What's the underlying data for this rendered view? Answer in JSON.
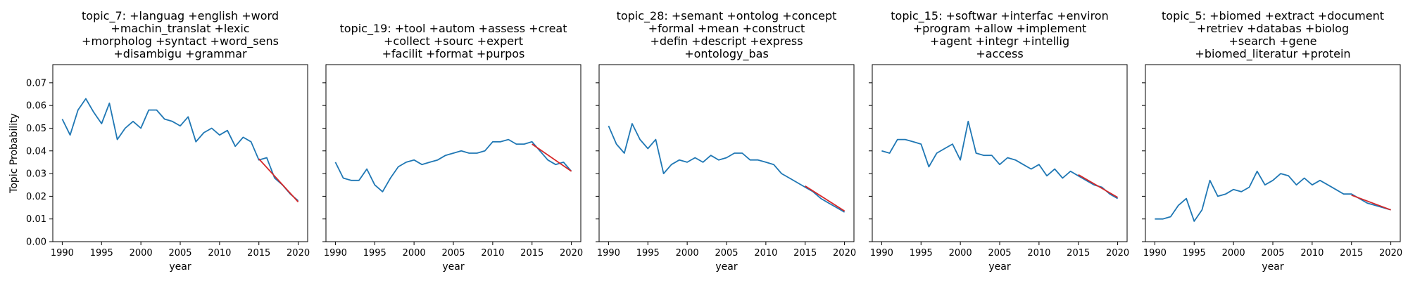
{
  "figure": {
    "ylabel": "Topic Probability",
    "yticks": [
      "0.00",
      "0.01",
      "0.02",
      "0.03",
      "0.04",
      "0.05",
      "0.06",
      "0.07"
    ],
    "xticks": [
      "1990",
      "1995",
      "2000",
      "2005",
      "2010",
      "2015",
      "2020"
    ]
  },
  "chart_data": [
    {
      "type": "line",
      "title": "topic_7: +languag +english +word\n+machin_translat +lexic\n+morpholog +syntact +word_sens\n+disambigu +grammar",
      "xlabel": "year",
      "ylabel": "Topic Probability",
      "xlim": [
        1988.8,
        2021.2
      ],
      "ylim": [
        0,
        0.078
      ],
      "colors": {
        "series": "#1f77b4",
        "trend": "#d62728"
      },
      "x": [
        1990,
        1991,
        1992,
        1993,
        1994,
        1995,
        1996,
        1997,
        1998,
        1999,
        2000,
        2001,
        2002,
        2003,
        2004,
        2005,
        2006,
        2007,
        2008,
        2009,
        2010,
        2011,
        2012,
        2013,
        2014,
        2015,
        2016,
        2017,
        2018,
        2019,
        2020
      ],
      "series": [
        {
          "values": [
            0.054,
            0.047,
            0.058,
            0.063,
            0.057,
            0.052,
            0.061,
            0.045,
            0.05,
            0.053,
            0.05,
            0.058,
            0.058,
            0.054,
            0.053,
            0.051,
            0.055,
            0.044,
            0.048,
            0.05,
            0.047,
            0.049,
            0.042,
            0.046,
            0.044,
            0.036,
            0.037,
            0.028,
            0.025,
            0.021,
            0.018
          ]
        },
        {
          "x": [
            2015,
            2020
          ],
          "values": [
            0.0365,
            0.0175
          ]
        }
      ]
    },
    {
      "type": "line",
      "title": "topic_19: +tool +autom +assess +creat\n+collect +sourc +expert\n+facilit +format +purpos",
      "xlabel": "year",
      "ylim": [
        0,
        0.078
      ],
      "xlim": [
        1988.8,
        2021.2
      ],
      "colors": {
        "series": "#1f77b4",
        "trend": "#d62728"
      },
      "x": [
        1990,
        1991,
        1992,
        1993,
        1994,
        1995,
        1996,
        1997,
        1998,
        1999,
        2000,
        2001,
        2002,
        2003,
        2004,
        2005,
        2006,
        2007,
        2008,
        2009,
        2010,
        2011,
        2012,
        2013,
        2014,
        2015,
        2016,
        2017,
        2018,
        2019,
        2020
      ],
      "series": [
        {
          "values": [
            0.035,
            0.028,
            0.027,
            0.027,
            0.032,
            0.025,
            0.022,
            0.028,
            0.033,
            0.035,
            0.036,
            0.034,
            0.035,
            0.036,
            0.038,
            0.039,
            0.04,
            0.039,
            0.039,
            0.04,
            0.044,
            0.044,
            0.045,
            0.043,
            0.043,
            0.044,
            0.04,
            0.036,
            0.034,
            0.035,
            0.031
          ]
        },
        {
          "x": [
            2015,
            2020
          ],
          "values": [
            0.043,
            0.031
          ]
        }
      ]
    },
    {
      "type": "line",
      "title": "topic_28: +semant +ontolog +concept\n+formal +mean +construct\n+defin +descript +express\n+ontology_bas",
      "xlabel": "year",
      "ylim": [
        0,
        0.078
      ],
      "xlim": [
        1988.8,
        2021.2
      ],
      "colors": {
        "series": "#1f77b4",
        "trend": "#d62728"
      },
      "x": [
        1990,
        1991,
        1992,
        1993,
        1994,
        1995,
        1996,
        1997,
        1998,
        1999,
        2000,
        2001,
        2002,
        2003,
        2004,
        2005,
        2006,
        2007,
        2008,
        2009,
        2010,
        2011,
        2012,
        2013,
        2014,
        2015,
        2016,
        2017,
        2018,
        2019,
        2020
      ],
      "series": [
        {
          "values": [
            0.051,
            0.043,
            0.039,
            0.052,
            0.045,
            0.041,
            0.045,
            0.03,
            0.034,
            0.036,
            0.035,
            0.037,
            0.035,
            0.038,
            0.036,
            0.037,
            0.039,
            0.039,
            0.036,
            0.036,
            0.035,
            0.034,
            0.03,
            0.028,
            0.026,
            0.024,
            0.022,
            0.019,
            0.017,
            0.015,
            0.013
          ]
        },
        {
          "x": [
            2015,
            2020
          ],
          "values": [
            0.0245,
            0.0135
          ]
        }
      ]
    },
    {
      "type": "line",
      "title": "topic_15: +softwar +interfac +environ\n+program +allow +implement\n+agent +integr +intellig\n+access",
      "xlabel": "year",
      "ylim": [
        0,
        0.078
      ],
      "xlim": [
        1988.8,
        2021.2
      ],
      "colors": {
        "series": "#1f77b4",
        "trend": "#d62728"
      },
      "x": [
        1990,
        1991,
        1992,
        1993,
        1994,
        1995,
        1996,
        1997,
        1998,
        1999,
        2000,
        2001,
        2002,
        2003,
        2004,
        2005,
        2006,
        2007,
        2008,
        2009,
        2010,
        2011,
        2012,
        2013,
        2014,
        2015,
        2016,
        2017,
        2018,
        2019,
        2020
      ],
      "series": [
        {
          "values": [
            0.04,
            0.039,
            0.045,
            0.045,
            0.044,
            0.043,
            0.033,
            0.039,
            0.041,
            0.043,
            0.036,
            0.053,
            0.039,
            0.038,
            0.038,
            0.034,
            0.037,
            0.036,
            0.034,
            0.032,
            0.034,
            0.029,
            0.032,
            0.028,
            0.031,
            0.029,
            0.027,
            0.025,
            0.024,
            0.021,
            0.019
          ]
        },
        {
          "x": [
            2015,
            2020
          ],
          "values": [
            0.0295,
            0.0195
          ]
        }
      ]
    },
    {
      "type": "line",
      "title": "topic_5: +biomed +extract +document\n+retriev +databas +biolog\n+search +gene\n+biomed_literatur +protein",
      "xlabel": "year",
      "ylim": [
        0,
        0.078
      ],
      "xlim": [
        1988.8,
        2021.2
      ],
      "colors": {
        "series": "#1f77b4",
        "trend": "#d62728"
      },
      "x": [
        1990,
        1991,
        1992,
        1993,
        1994,
        1995,
        1996,
        1997,
        1998,
        1999,
        2000,
        2001,
        2002,
        2003,
        2004,
        2005,
        2006,
        2007,
        2008,
        2009,
        2010,
        2011,
        2012,
        2013,
        2014,
        2015,
        2016,
        2017,
        2018,
        2019,
        2020
      ],
      "series": [
        {
          "values": [
            0.01,
            0.01,
            0.011,
            0.016,
            0.019,
            0.009,
            0.014,
            0.027,
            0.02,
            0.021,
            0.023,
            0.022,
            0.024,
            0.031,
            0.025,
            0.027,
            0.03,
            0.029,
            0.025,
            0.028,
            0.025,
            0.027,
            0.025,
            0.023,
            0.021,
            0.021,
            0.019,
            0.017,
            0.016,
            0.015,
            0.014
          ]
        },
        {
          "x": [
            2015,
            2020
          ],
          "values": [
            0.0205,
            0.014
          ]
        }
      ]
    }
  ]
}
